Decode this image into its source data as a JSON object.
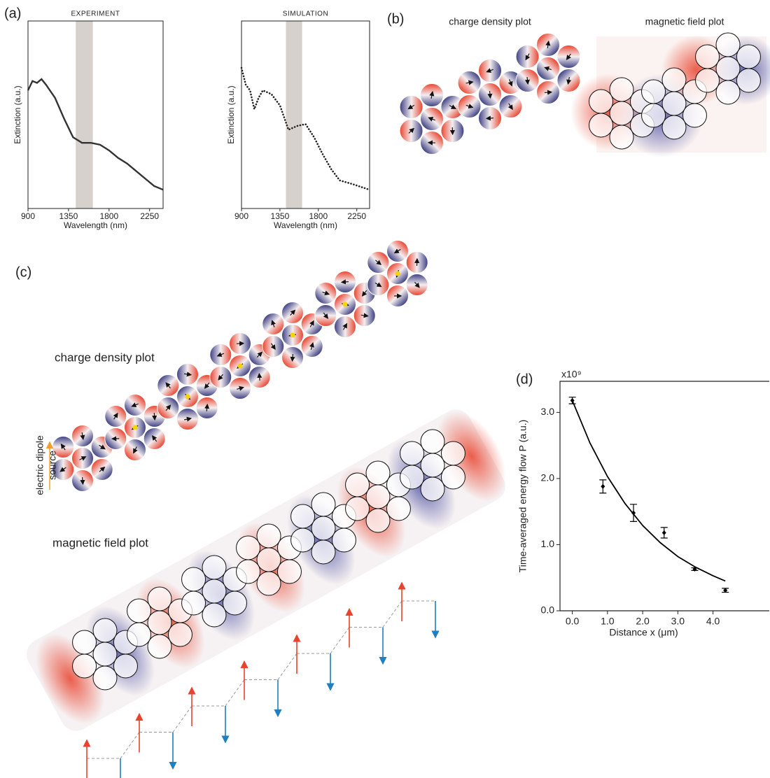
{
  "panels": {
    "a": "(a)",
    "b": "(b)",
    "c": "(c)",
    "d": "(d)"
  },
  "chart_data": [
    {
      "type": "line",
      "title": "EXPERIMENT",
      "x_label": "Wavelength (nm)",
      "y_label": "Extinction (a.u.)",
      "x": [
        900,
        950,
        1000,
        1050,
        1100,
        1200,
        1300,
        1400,
        1500,
        1600,
        1700,
        1800,
        1900,
        2000,
        2100,
        2200,
        2300,
        2400
      ],
      "values": [
        0.63,
        0.68,
        0.67,
        0.69,
        0.66,
        0.59,
        0.48,
        0.38,
        0.35,
        0.35,
        0.34,
        0.31,
        0.27,
        0.24,
        0.2,
        0.16,
        0.12,
        0.1
      ],
      "xlim": [
        900,
        2400
      ],
      "xticks": [
        900,
        1350,
        1800,
        2250
      ],
      "ylim": [
        0,
        1
      ],
      "highlight_band": [
        1430,
        1620
      ],
      "color": "#333333",
      "line_style": "solid"
    },
    {
      "type": "line",
      "title": "SIMULATION",
      "x_label": "Wavelength (nm)",
      "y_label": "Extinction (a.u.)",
      "x": [
        900,
        950,
        1000,
        1050,
        1100,
        1150,
        1250,
        1350,
        1450,
        1550,
        1650,
        1750,
        1850,
        1950,
        2050,
        2200,
        2400
      ],
      "values": [
        0.75,
        0.66,
        0.63,
        0.53,
        0.59,
        0.63,
        0.61,
        0.55,
        0.42,
        0.44,
        0.45,
        0.38,
        0.29,
        0.21,
        0.15,
        0.13,
        0.1
      ],
      "xlim": [
        900,
        2400
      ],
      "xticks": [
        900,
        1350,
        1800,
        2250
      ],
      "ylim": [
        0,
        1
      ],
      "highlight_band": [
        1420,
        1610
      ],
      "color": "#222222",
      "line_style": "dotted"
    },
    {
      "type": "scatter",
      "multiplier": "x10⁹",
      "x_label": "Distance x (μm)",
      "y_label": "Time-averaged energy flow P (a.u.)",
      "xlim": [
        -0.35,
        5.6
      ],
      "ylim": [
        0,
        3.47
      ],
      "xticks": [
        {
          "value": 0,
          "label": "0.0"
        },
        {
          "value": 1,
          "label": "1.0"
        },
        {
          "value": 2,
          "label": "2.0"
        },
        {
          "value": 3,
          "label": "3.0"
        },
        {
          "value": 4,
          "label": "4.0"
        }
      ],
      "yticks": [
        {
          "value": 0,
          "label": "0.0"
        },
        {
          "value": 1,
          "label": "1.0"
        },
        {
          "value": 2,
          "label": "2.0"
        },
        {
          "value": 3,
          "label": "3.0"
        }
      ],
      "series": [
        {
          "color": "#000000",
          "x": [
            0,
            0.87,
            1.74,
            2.61,
            3.48,
            4.35
          ],
          "values": [
            3.18,
            1.88,
            1.48,
            1.18,
            0.63,
            0.31
          ],
          "errors": [
            0.05,
            0.1,
            0.13,
            0.08,
            0.02,
            0.03
          ]
        },
        {
          "color": "#000000",
          "style": "line",
          "x": [
            0,
            0.5,
            1,
            1.5,
            2,
            2.5,
            3,
            3.5,
            4,
            4.35
          ],
          "values": [
            3.18,
            2.54,
            2.03,
            1.62,
            1.29,
            1.03,
            0.82,
            0.66,
            0.53,
            0.45
          ]
        }
      ]
    }
  ],
  "b": {
    "charge_title": "charge density plot",
    "magnetic_title": "magnetic field plot"
  },
  "c": {
    "charge_title": "charge density plot",
    "magnetic_title": "magnetic field plot",
    "source_label": [
      "electric dipole",
      "source"
    ]
  }
}
